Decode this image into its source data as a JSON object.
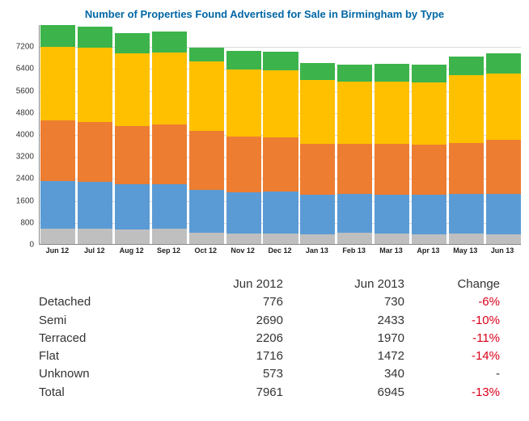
{
  "title": "Number of Properties Found Advertised for Sale in Birmingham by Type",
  "title_fontsize": 13,
  "chart": {
    "type": "stacked-bar",
    "background_color": "#ffffff",
    "grid_color": "#d9d9d9",
    "axis_color": "#888888",
    "ymax": 8000,
    "ymin": 0,
    "ytick_step": 800,
    "ytick_labels": [
      "0",
      "800",
      "1600",
      "2400",
      "3200",
      "4000",
      "4800",
      "5600",
      "6400",
      "7200"
    ],
    "bar_width_ratio": 0.94,
    "categories": [
      "Jun 12",
      "Jul 12",
      "Aug 12",
      "Sep 12",
      "Oct 12",
      "Nov 12",
      "Dec 12",
      "Jan 13",
      "Feb 13",
      "Mar 13",
      "Apr 13",
      "May 13",
      "Jun 13"
    ],
    "series": [
      {
        "name": "Unknown",
        "color": "#bfbfbf"
      },
      {
        "name": "Flat",
        "color": "#5b9bd5"
      },
      {
        "name": "Terraced",
        "color": "#ed7d31"
      },
      {
        "name": "Semi",
        "color": "#ffc000"
      },
      {
        "name": "Detached",
        "color": "#3cb44b"
      }
    ],
    "data": {
      "Unknown": [
        573,
        560,
        540,
        550,
        400,
        390,
        395,
        360,
        410,
        370,
        365,
        380,
        340
      ],
      "Flat": [
        1716,
        1710,
        1640,
        1640,
        1570,
        1500,
        1510,
        1430,
        1400,
        1415,
        1420,
        1440,
        1472
      ],
      "Terraced": [
        2206,
        2180,
        2110,
        2150,
        2140,
        2010,
        1990,
        1870,
        1840,
        1850,
        1840,
        1870,
        1970
      ],
      "Semi": [
        2690,
        2690,
        2640,
        2640,
        2540,
        2450,
        2430,
        2300,
        2260,
        2280,
        2270,
        2450,
        2433
      ],
      "Detached": [
        776,
        770,
        760,
        770,
        490,
        690,
        680,
        640,
        620,
        640,
        640,
        680,
        730
      ]
    },
    "label_fontsize": 10
  },
  "table": {
    "headers": {
      "label": "",
      "col1": "Jun 2012",
      "col2": "Jun 2013",
      "change": "Change"
    },
    "rows": [
      {
        "label": "Detached",
        "v1": "776",
        "v2": "730",
        "change": "-6%",
        "neg": true
      },
      {
        "label": "Semi",
        "v1": "2690",
        "v2": "2433",
        "change": "-10%",
        "neg": true
      },
      {
        "label": "Terraced",
        "v1": "2206",
        "v2": "1970",
        "change": "-11%",
        "neg": true
      },
      {
        "label": "Flat",
        "v1": "1716",
        "v2": "1472",
        "change": "-14%",
        "neg": true
      },
      {
        "label": "Unknown",
        "v1": "573",
        "v2": "340",
        "change": "-",
        "neg": false
      },
      {
        "label": "Total",
        "v1": "7961",
        "v2": "6945",
        "change": "-13%",
        "neg": true
      }
    ]
  }
}
